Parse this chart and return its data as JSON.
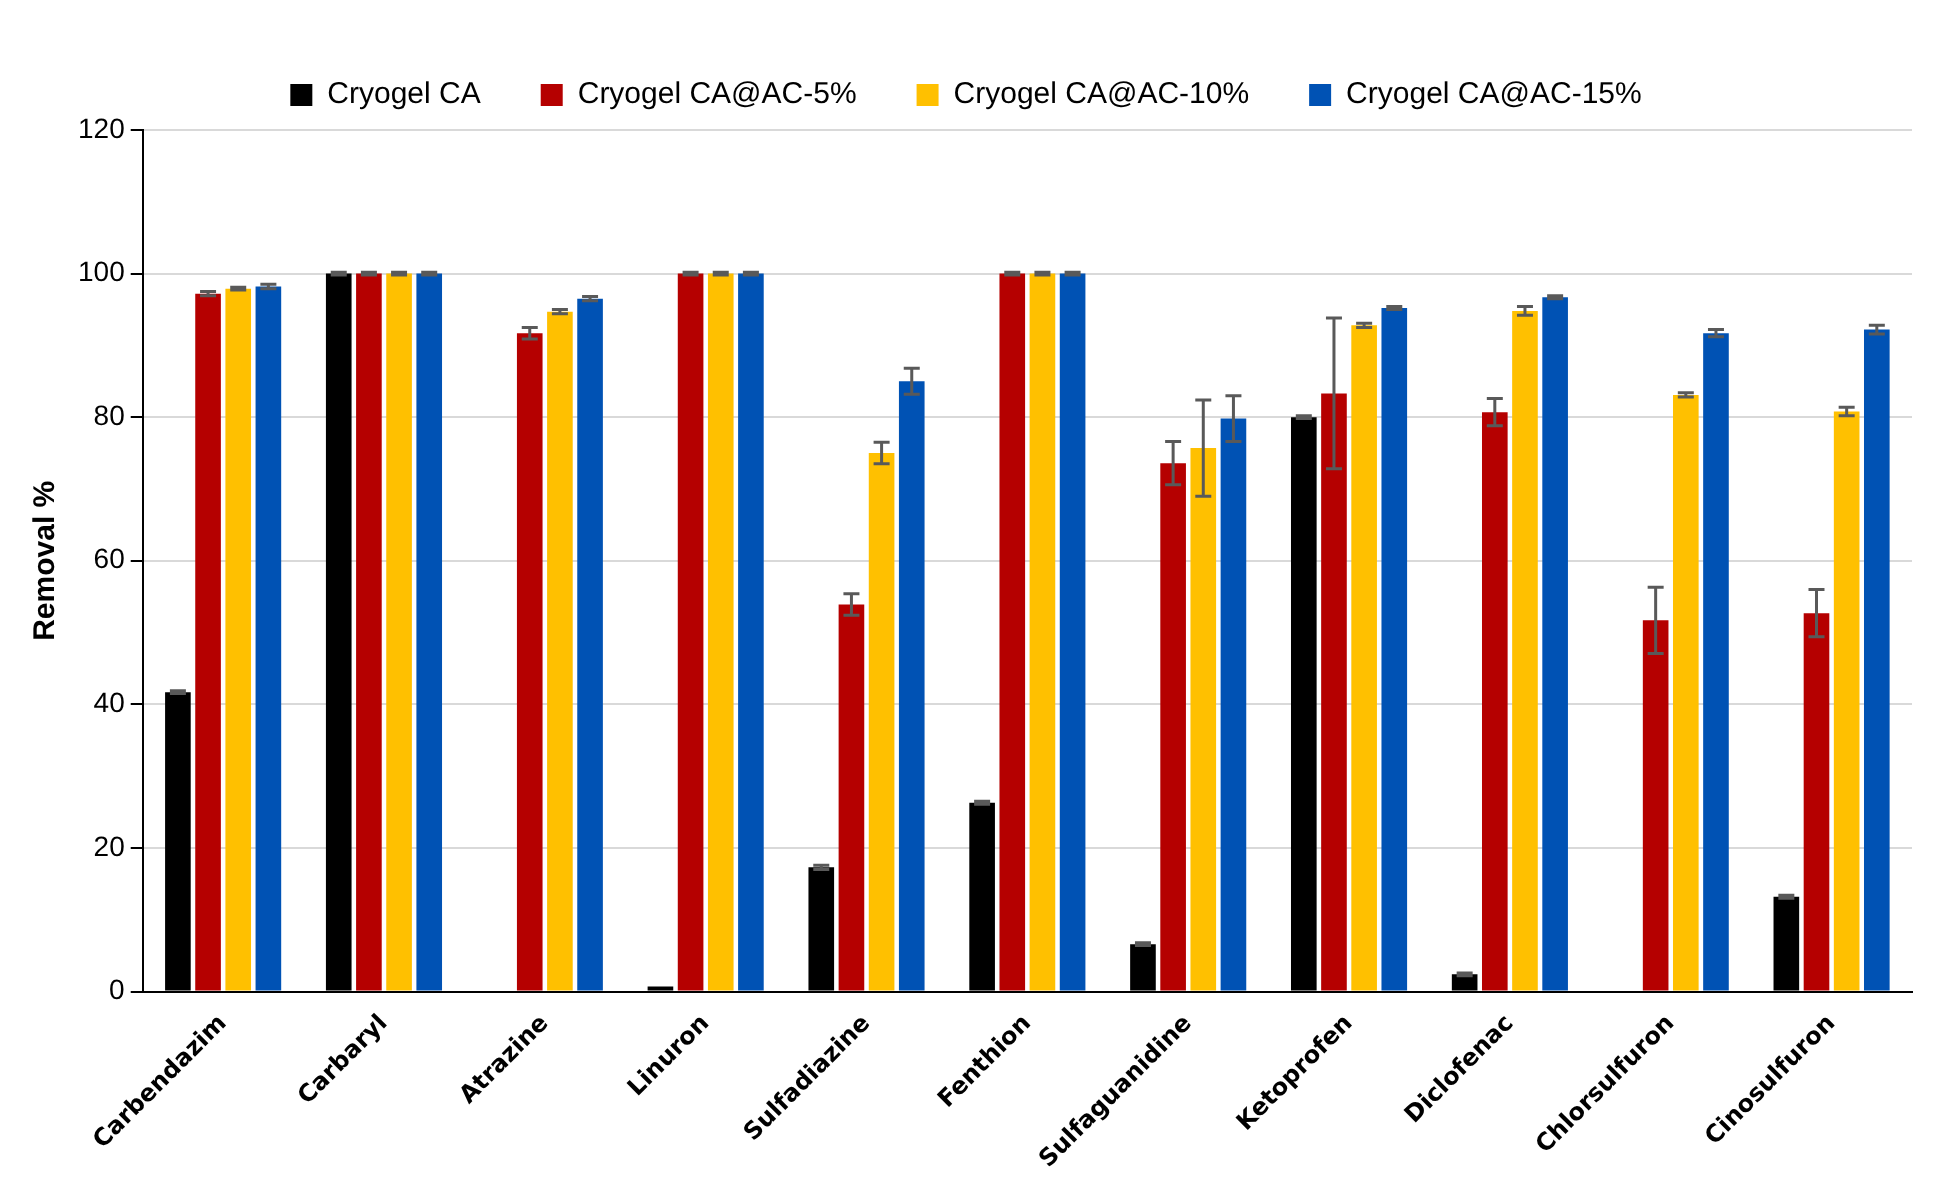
{
  "chart_data": {
    "type": "bar",
    "ylabel": "Removal %",
    "categories": [
      "Carbendazim",
      "Carbaryl",
      "Atrazine",
      "Linuron",
      "Sulfadiazine",
      "Fenthion",
      "Sulfaguanidine",
      "Ketoprofen",
      "Diclofenac",
      "Chlorsulfuron",
      "Cinosulfuron"
    ],
    "series": [
      {
        "name": "Cryogel CA",
        "color": "#000000",
        "values": [
          41.7,
          100,
          null,
          0.7,
          17.3,
          26.3,
          6.6,
          80.0,
          2.4,
          null,
          13.2
        ],
        "errors": [
          0.2,
          0.2,
          null,
          null,
          0.3,
          0.2,
          0.2,
          0.2,
          0.2,
          null,
          0.2
        ]
      },
      {
        "name": "Cryogel CA@AC-5%",
        "color": "#b50000",
        "values": [
          97.2,
          100,
          91.7,
          100,
          53.9,
          100,
          73.6,
          83.3,
          80.7,
          51.7,
          52.7
        ],
        "errors": [
          0.3,
          0.2,
          0.8,
          0.2,
          1.5,
          0.2,
          3.0,
          10.5,
          1.9,
          4.6,
          3.3
        ]
      },
      {
        "name": "Cryogel CA@AC-10%",
        "color": "#ffc000",
        "values": [
          97.9,
          100,
          94.7,
          100,
          75.0,
          100,
          75.7,
          92.8,
          94.8,
          83.1,
          80.8
        ],
        "errors": [
          0.2,
          0.2,
          0.3,
          0.2,
          1.5,
          0.2,
          6.7,
          0.3,
          0.6,
          0.3,
          0.6
        ]
      },
      {
        "name": "Cryogel CA@AC-15%",
        "color": "#0052b4",
        "values": [
          98.2,
          100,
          96.5,
          100,
          85.0,
          100,
          79.8,
          95.2,
          96.7,
          91.7,
          92.2
        ],
        "errors": [
          0.3,
          0.2,
          0.3,
          0.2,
          1.8,
          0.2,
          3.2,
          0.2,
          0.2,
          0.5,
          0.6
        ]
      }
    ],
    "ylim": [
      0,
      120
    ],
    "yticks": [
      0,
      20,
      40,
      60,
      80,
      100,
      120
    ],
    "grid": "y",
    "legend": "top"
  }
}
